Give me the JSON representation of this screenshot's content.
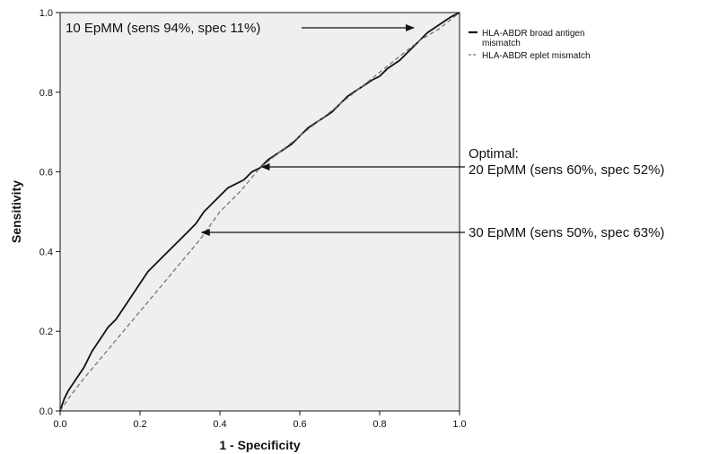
{
  "chart_data": {
    "type": "line",
    "title": "",
    "xlabel": "1 - Specificity",
    "ylabel": "Sensitivity",
    "xlim": [
      0,
      1
    ],
    "ylim": [
      0,
      1
    ],
    "x_ticks": [
      0.0,
      0.2,
      0.4,
      0.6,
      0.8,
      1.0
    ],
    "y_ticks": [
      0.0,
      0.2,
      0.4,
      0.6,
      0.8,
      1.0
    ],
    "x_tick_labels": [
      "0.0",
      "0.2",
      "0.4",
      "0.6",
      "0.8",
      "1.0"
    ],
    "y_tick_labels": [
      "0.0",
      "0.2",
      "0.4",
      "0.6",
      "0.8",
      "1.0"
    ],
    "grid": false,
    "background": "#efefef",
    "legend_position": "top-right",
    "legend": [
      {
        "label_lines": [
          "HLA-ABDR broad antigen",
          "mismatch"
        ],
        "style": "solid"
      },
      {
        "label_lines": [
          "HLA-ABDR eplet mismatch"
        ],
        "style": "dashed"
      }
    ],
    "series": [
      {
        "name": "HLA-ABDR broad antigen mismatch",
        "style": "solid",
        "color": "#111111",
        "x": [
          0,
          0.01,
          0.02,
          0.04,
          0.06,
          0.08,
          0.1,
          0.12,
          0.14,
          0.16,
          0.18,
          0.2,
          0.22,
          0.24,
          0.26,
          0.28,
          0.3,
          0.32,
          0.34,
          0.36,
          0.38,
          0.4,
          0.42,
          0.44,
          0.46,
          0.48,
          0.5,
          0.52,
          0.55,
          0.58,
          0.6,
          0.62,
          0.65,
          0.68,
          0.7,
          0.72,
          0.75,
          0.78,
          0.8,
          0.82,
          0.85,
          0.88,
          0.9,
          0.92,
          0.95,
          0.98,
          1.0
        ],
        "y": [
          0,
          0.03,
          0.05,
          0.08,
          0.11,
          0.15,
          0.18,
          0.21,
          0.23,
          0.26,
          0.29,
          0.32,
          0.35,
          0.37,
          0.39,
          0.41,
          0.43,
          0.45,
          0.47,
          0.5,
          0.52,
          0.54,
          0.56,
          0.57,
          0.58,
          0.6,
          0.61,
          0.63,
          0.65,
          0.67,
          0.69,
          0.71,
          0.73,
          0.75,
          0.77,
          0.79,
          0.81,
          0.83,
          0.84,
          0.86,
          0.88,
          0.91,
          0.93,
          0.95,
          0.97,
          0.99,
          1.0
        ]
      },
      {
        "name": "HLA-ABDR eplet mismatch",
        "style": "dashed",
        "color": "#777777",
        "x": [
          0,
          0.02,
          0.05,
          0.1,
          0.15,
          0.2,
          0.25,
          0.3,
          0.35,
          0.4,
          0.45,
          0.5,
          0.55,
          0.6,
          0.65,
          0.7,
          0.75,
          0.8,
          0.85,
          0.9,
          0.95,
          1.0
        ],
        "y": [
          0,
          0.03,
          0.07,
          0.13,
          0.19,
          0.25,
          0.31,
          0.37,
          0.43,
          0.5,
          0.55,
          0.61,
          0.65,
          0.69,
          0.73,
          0.77,
          0.81,
          0.85,
          0.89,
          0.93,
          0.96,
          1.0
        ]
      }
    ],
    "annotations": [
      {
        "lines": [
          "10 EpMM (sens 94%, spec 11%)"
        ],
        "point": [
          0.89,
          0.96
        ],
        "side": "left"
      },
      {
        "lines": [
          "Optimal:",
          "20 EpMM (sens 60%, spec 52%)"
        ],
        "point": [
          0.5,
          0.61
        ],
        "side": "right"
      },
      {
        "lines": [
          "30 EpMM (sens 50%, spec 63%)"
        ],
        "point": [
          0.35,
          0.45
        ],
        "side": "right"
      }
    ]
  }
}
